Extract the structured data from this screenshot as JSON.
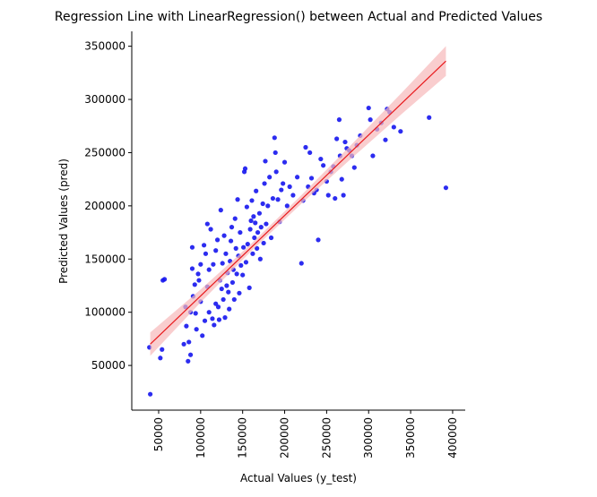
{
  "chart_data": {
    "type": "scatter",
    "title": "Regression Line with LinearRegression() between Actual and Predicted Values",
    "x_label": "Actual Values (y_test)",
    "y_label": "Predicted Values (pred)",
    "xlim": [
      18000,
      415000
    ],
    "ylim": [
      8000,
      364000
    ],
    "xticks": [
      50000,
      100000,
      150000,
      200000,
      250000,
      300000,
      350000,
      400000
    ],
    "yticks": [
      50000,
      100000,
      150000,
      200000,
      250000,
      300000,
      350000
    ],
    "grid": false,
    "point_color": "#1515ee",
    "line_color": "#e8191c",
    "band_color": "#f6b8b9",
    "x": [
      39000,
      40000,
      52000,
      54000,
      55000,
      57000,
      80000,
      82000,
      83000,
      85000,
      86000,
      88000,
      88000,
      90000,
      90000,
      91000,
      93000,
      94000,
      95000,
      97000,
      98000,
      100000,
      100000,
      102000,
      104000,
      105000,
      106000,
      108000,
      108000,
      110000,
      110000,
      112000,
      114000,
      115000,
      116000,
      118000,
      118000,
      120000,
      121000,
      122000,
      123000,
      124000,
      125000,
      126000,
      127000,
      128000,
      129000,
      130000,
      131000,
      132000,
      133000,
      134000,
      135000,
      136000,
      137000,
      138000,
      139000,
      140000,
      141000,
      142000,
      143000,
      144000,
      145000,
      146000,
      147000,
      148000,
      150000,
      151000,
      152000,
      153000,
      154000,
      155000,
      156000,
      158000,
      159000,
      160000,
      161000,
      162000,
      163000,
      164000,
      165000,
      166000,
      167000,
      168000,
      170000,
      171000,
      172000,
      174000,
      175000,
      176000,
      177000,
      178000,
      180000,
      182000,
      184000,
      186000,
      188000,
      189000,
      190000,
      192000,
      194000,
      196000,
      198000,
      200000,
      203000,
      206000,
      210000,
      215000,
      220000,
      222000,
      225000,
      228000,
      230000,
      232000,
      235000,
      238000,
      240000,
      243000,
      246000,
      250000,
      252000,
      255000,
      258000,
      260000,
      262000,
      265000,
      266000,
      268000,
      270000,
      272000,
      274000,
      277000,
      280000,
      283000,
      286000,
      290000,
      300000,
      302000,
      305000,
      310000,
      315000,
      320000,
      322000,
      325000,
      330000,
      338000,
      372000,
      392000
    ],
    "y": [
      67000,
      23000,
      57000,
      65000,
      130000,
      131000,
      70000,
      105000,
      87000,
      54000,
      72000,
      60000,
      100000,
      141000,
      161000,
      115000,
      126000,
      99000,
      84000,
      136000,
      130000,
      145000,
      110000,
      78000,
      163000,
      92000,
      155000,
      124000,
      183000,
      140000,
      100000,
      178000,
      94000,
      145000,
      88000,
      108000,
      158000,
      168000,
      105000,
      93000,
      130000,
      196000,
      122000,
      146000,
      112000,
      172000,
      95000,
      155000,
      125000,
      137000,
      119000,
      103000,
      148000,
      167000,
      180000,
      128000,
      140000,
      112000,
      188000,
      160000,
      136000,
      206000,
      153000,
      118000,
      175000,
      144000,
      135000,
      161000,
      232000,
      235000,
      147000,
      199000,
      164000,
      123000,
      178000,
      186000,
      205000,
      155000,
      190000,
      170000,
      184000,
      214000,
      160000,
      175000,
      193000,
      150000,
      180000,
      202000,
      165000,
      221000,
      242000,
      183000,
      200000,
      227000,
      170000,
      207000,
      264000,
      250000,
      232000,
      206000,
      185000,
      215000,
      221000,
      241000,
      200000,
      218000,
      210000,
      227000,
      146000,
      205000,
      255000,
      218000,
      250000,
      226000,
      212000,
      215000,
      168000,
      244000,
      238000,
      223000,
      210000,
      232000,
      237000,
      207000,
      263000,
      281000,
      247000,
      225000,
      210000,
      260000,
      254000,
      252000,
      247000,
      236000,
      257000,
      266000,
      292000,
      281000,
      247000,
      272000,
      278000,
      262000,
      291000,
      288000,
      274000,
      270000,
      283000,
      217000
    ],
    "regression": {
      "x": [
        40000,
        100000,
        160000,
        220000,
        280000,
        340000,
        392000
      ],
      "y": [
        70000,
        115360,
        160720,
        206080,
        251440,
        296800,
        336100
      ],
      "lower": [
        59000,
        109360,
        157220,
        202080,
        244940,
        286800,
        322100
      ],
      "upper": [
        81000,
        121360,
        164220,
        210080,
        257940,
        306800,
        350100
      ]
    }
  }
}
